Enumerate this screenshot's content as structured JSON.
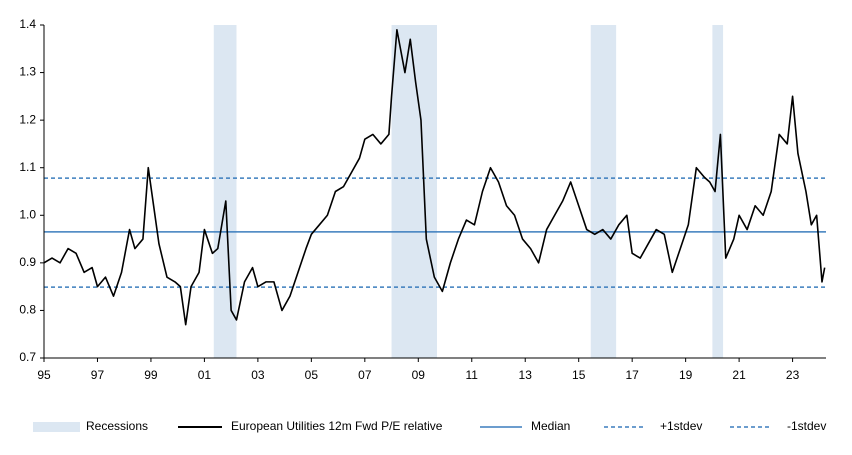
{
  "chart_data": {
    "type": "line",
    "x": [
      1995.0,
      1995.3,
      1995.6,
      1995.9,
      1996.2,
      1996.5,
      1996.8,
      1997.0,
      1997.3,
      1997.6,
      1997.9,
      1998.2,
      1998.4,
      1998.7,
      1998.9,
      1999.1,
      1999.3,
      1999.6,
      1999.9,
      2000.1,
      2000.3,
      2000.5,
      2000.8,
      2001.0,
      2001.3,
      2001.5,
      2001.8,
      2002.0,
      2002.2,
      2002.5,
      2002.8,
      2003.0,
      2003.3,
      2003.6,
      2003.9,
      2004.2,
      2004.5,
      2004.8,
      2005.0,
      2005.3,
      2005.6,
      2005.9,
      2006.2,
      2006.5,
      2006.8,
      2007.0,
      2007.3,
      2007.6,
      2007.9,
      2008.0,
      2008.2,
      2008.5,
      2008.7,
      2008.9,
      2009.1,
      2009.3,
      2009.6,
      2009.9,
      2010.2,
      2010.5,
      2010.8,
      2011.1,
      2011.4,
      2011.7,
      2012.0,
      2012.3,
      2012.6,
      2012.9,
      2013.2,
      2013.5,
      2013.8,
      2014.1,
      2014.4,
      2014.7,
      2015.0,
      2015.3,
      2015.6,
      2015.9,
      2016.2,
      2016.5,
      2016.8,
      2017.0,
      2017.3,
      2017.6,
      2017.9,
      2018.2,
      2018.5,
      2018.8,
      2019.1,
      2019.4,
      2019.7,
      2019.9,
      2020.1,
      2020.3,
      2020.5,
      2020.8,
      2021.0,
      2021.3,
      2021.6,
      2021.9,
      2022.2,
      2022.5,
      2022.8,
      2023.0,
      2023.2,
      2023.5,
      2023.7,
      2023.9,
      2024.1,
      2024.2
    ],
    "series": [
      {
        "name": "European Utilities 12m Fwd P/E relative",
        "color": "#000000",
        "values": [
          0.9,
          0.91,
          0.9,
          0.93,
          0.92,
          0.88,
          0.89,
          0.85,
          0.87,
          0.83,
          0.88,
          0.97,
          0.93,
          0.95,
          1.1,
          1.02,
          0.94,
          0.87,
          0.86,
          0.85,
          0.77,
          0.85,
          0.88,
          0.97,
          0.92,
          0.93,
          1.03,
          0.8,
          0.78,
          0.86,
          0.89,
          0.85,
          0.86,
          0.86,
          0.8,
          0.83,
          0.88,
          0.93,
          0.96,
          0.98,
          1.0,
          1.05,
          1.06,
          1.09,
          1.12,
          1.16,
          1.17,
          1.15,
          1.17,
          1.25,
          1.39,
          1.3,
          1.37,
          1.28,
          1.2,
          0.95,
          0.87,
          0.84,
          0.9,
          0.95,
          0.99,
          0.98,
          1.05,
          1.1,
          1.07,
          1.02,
          1.0,
          0.95,
          0.93,
          0.9,
          0.97,
          1.0,
          1.03,
          1.07,
          1.02,
          0.97,
          0.96,
          0.97,
          0.95,
          0.98,
          1.0,
          0.92,
          0.91,
          0.94,
          0.97,
          0.96,
          0.88,
          0.93,
          0.98,
          1.1,
          1.08,
          1.07,
          1.05,
          1.17,
          0.91,
          0.95,
          1.0,
          0.97,
          1.02,
          1.0,
          1.05,
          1.17,
          1.15,
          1.25,
          1.13,
          1.05,
          0.98,
          1.0,
          0.86,
          0.89
        ]
      }
    ],
    "reference_lines": [
      {
        "name": "Median",
        "value": 0.965,
        "color": "#3b7dbd",
        "dashed": false
      },
      {
        "name": "+1stdev",
        "value": 1.078,
        "color": "#3b7dbd",
        "dashed": true
      },
      {
        "name": "-1stdev",
        "value": 0.849,
        "color": "#3b7dbd",
        "dashed": true
      }
    ],
    "shaded": {
      "name": "Recessions",
      "color": "#dce7f2",
      "spans": [
        [
          2001.35,
          2002.2
        ],
        [
          2008.0,
          2009.7
        ],
        [
          2015.45,
          2016.4
        ],
        [
          2020.0,
          2020.4
        ]
      ]
    },
    "xlim": [
      1995,
      2024.25
    ],
    "xticks": [
      {
        "value": 1995,
        "label": "95"
      },
      {
        "value": 1997,
        "label": "97"
      },
      {
        "value": 1999,
        "label": "99"
      },
      {
        "value": 2001,
        "label": "01"
      },
      {
        "value": 2003,
        "label": "03"
      },
      {
        "value": 2005,
        "label": "05"
      },
      {
        "value": 2007,
        "label": "07"
      },
      {
        "value": 2009,
        "label": "09"
      },
      {
        "value": 2011,
        "label": "11"
      },
      {
        "value": 2013,
        "label": "13"
      },
      {
        "value": 2015,
        "label": "15"
      },
      {
        "value": 2017,
        "label": "17"
      },
      {
        "value": 2019,
        "label": "19"
      },
      {
        "value": 2021,
        "label": "21"
      },
      {
        "value": 2023,
        "label": "23"
      }
    ],
    "ylim": [
      0.7,
      1.4
    ],
    "yticks": [
      0.7,
      0.8,
      0.9,
      {
        "value": 1,
        "label": "1.0"
      },
      1.1,
      1.2,
      1.3,
      1.4
    ],
    "grid": false
  }
}
